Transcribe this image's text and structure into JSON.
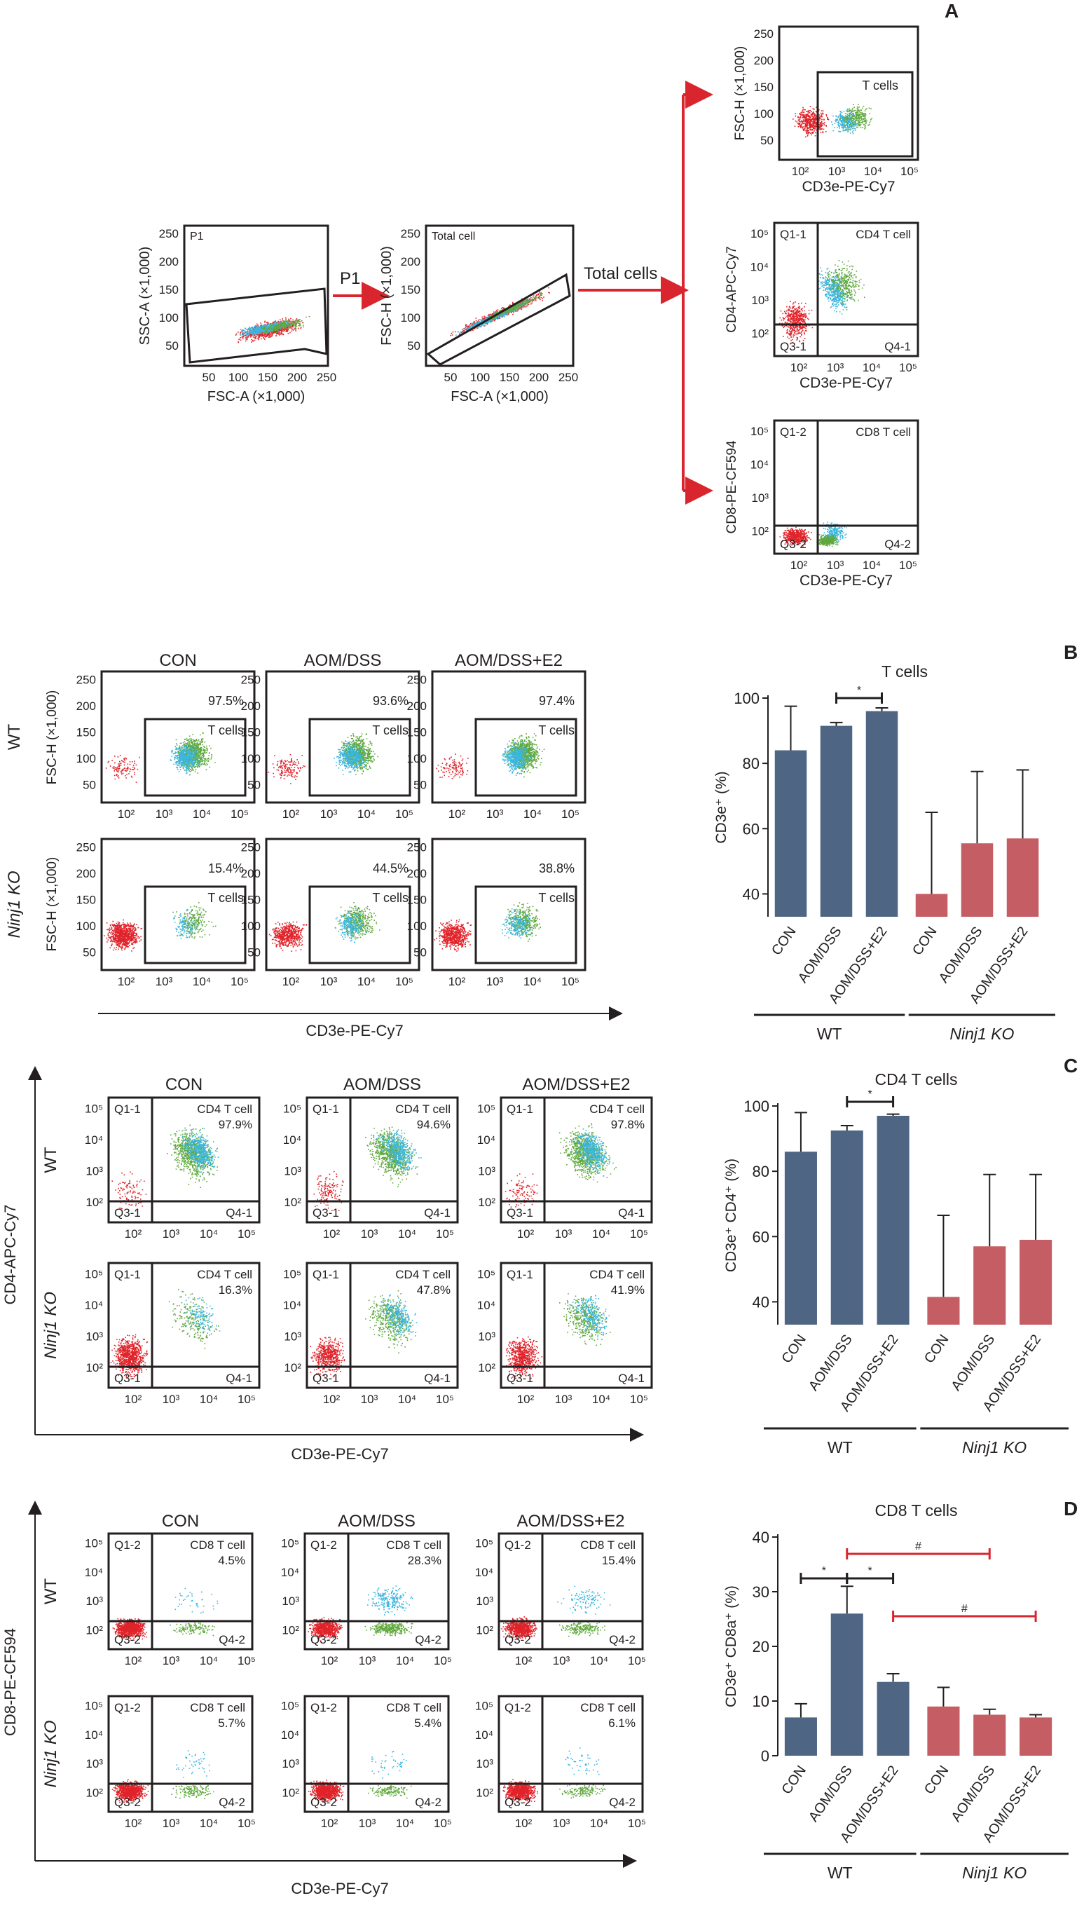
{
  "panels": {
    "A": {
      "letter": "A",
      "arrow_labels": {
        "p1": "P1",
        "total": "Total cells"
      },
      "plots": {
        "p1": {
          "gate_label": "P1",
          "xlabel": "FSC-A (×1,000)",
          "ylabel": "SSC-A (×1,000)",
          "xticks": [
            "50",
            "100",
            "150",
            "200",
            "250"
          ],
          "yticks": [
            "250",
            "200",
            "150",
            "100",
            "50"
          ]
        },
        "total": {
          "gate_label": "Total cell",
          "xlabel": "FSC-A (×1,000)",
          "ylabel": "FSC-H (×1,000)",
          "xticks": [
            "50",
            "100",
            "150",
            "200",
            "250"
          ],
          "yticks": [
            "250",
            "200",
            "150",
            "100",
            "50"
          ]
        },
        "tcells": {
          "gate_label": "T cells",
          "xlabel": "CD3e-PE-Cy7",
          "ylabel": "FSC-H (×1,000)",
          "xticks": [
            "10²",
            "10³",
            "10⁴",
            "10⁵"
          ],
          "yticks": [
            "250",
            "200",
            "150",
            "100",
            "50"
          ]
        },
        "cd4": {
          "gate_label": "CD4 T cell",
          "q_tl": "Q1-1",
          "q_bl": "Q3-1",
          "q_br": "Q4-1",
          "xlabel": "CD3e-PE-Cy7",
          "ylabel": "CD4-APC-Cy7",
          "xticks": [
            "10²",
            "10³",
            "10⁴",
            "10⁵"
          ],
          "yticks": [
            "10⁵",
            "10⁴",
            "10³",
            "10²"
          ]
        },
        "cd8": {
          "gate_label": "CD8 T cell",
          "q_tl": "Q1-2",
          "q_bl": "Q3-2",
          "q_br": "Q4-2",
          "xlabel": "CD3e-PE-Cy7",
          "ylabel": "CD8-PE-CF594",
          "xticks": [
            "10²",
            "10³",
            "10⁴",
            "10⁵"
          ],
          "yticks": [
            "10⁵",
            "10⁴",
            "10³",
            "10²"
          ]
        }
      }
    },
    "B": {
      "letter": "B",
      "col_titles": [
        "CON",
        "AOM/DSS",
        "AOM/DSS+E2"
      ],
      "row_labels": [
        "WT",
        "Ninj1 KO"
      ],
      "gate_label": "T cells",
      "ylabel": "FSC-H (×1,000)",
      "yticks": [
        "250",
        "200",
        "150",
        "100",
        "50"
      ],
      "xticks": [
        "10²",
        "10³",
        "10⁴",
        "10⁵"
      ],
      "xlabel": "CD3e-PE-Cy7",
      "percents": [
        [
          "97.5%",
          "93.6%",
          "97.4%"
        ],
        [
          "15.4%",
          "44.5%",
          "38.8%"
        ]
      ]
    },
    "C": {
      "letter": "C",
      "col_titles": [
        "CON",
        "AOM/DSS",
        "AOM/DSS+E2"
      ],
      "row_labels": [
        "WT",
        "Ninj1 KO"
      ],
      "gate_label": "CD4 T cell",
      "q_tl": "Q1-1",
      "q_bl": "Q3-1",
      "q_br": "Q4-1",
      "yticks": [
        "10⁵",
        "10⁴",
        "10³",
        "10²"
      ],
      "xticks": [
        "10²",
        "10³",
        "10⁴",
        "10⁵"
      ],
      "xlabel": "CD3e-PE-Cy7",
      "ylabel": "CD4-APC-Cy7",
      "percents": [
        [
          "97.9%",
          "94.6%",
          "97.8%"
        ],
        [
          "16.3%",
          "47.8%",
          "41.9%"
        ]
      ]
    },
    "D": {
      "letter": "D",
      "col_titles": [
        "CON",
        "AOM/DSS",
        "AOM/DSS+E2"
      ],
      "row_labels": [
        "WT",
        "Ninj1 KO"
      ],
      "gate_label": "CD8 T cell",
      "q_tl": "Q1-2",
      "q_bl": "Q3-2",
      "q_br": "Q4-2",
      "yticks": [
        "10⁵",
        "10⁴",
        "10³",
        "10²"
      ],
      "xticks": [
        "10²",
        "10³",
        "10⁴",
        "10⁵"
      ],
      "xlabel": "CD3e-PE-Cy7",
      "ylabel": "CD8-PE-CF594",
      "percents": [
        [
          "4.5%",
          "28.3%",
          "15.4%"
        ],
        [
          "5.7%",
          "5.4%",
          "6.1%"
        ]
      ]
    }
  },
  "colors": {
    "wt_bar": "#4f6584",
    "ko_bar": "#c45d64",
    "gate_arrow": "#d9262e",
    "dots": [
      "#e0232a",
      "#3bb6df",
      "#5fa83c"
    ],
    "sig_red": "#d9262e"
  },
  "chart_data": [
    {
      "type": "bar",
      "panel": "B",
      "title": "T cells",
      "ylabel": "CD3e⁺ (%)",
      "categories": [
        "CON",
        "AOM/DSS",
        "AOM/DSS+E2",
        "CON",
        "AOM/DSS",
        "AOM/DSS+E2"
      ],
      "groups": [
        "WT",
        "Ninj1 KO"
      ],
      "values": [
        84,
        91.5,
        96,
        40,
        55.5,
        57
      ],
      "errors": [
        13.5,
        1,
        1,
        25,
        22,
        21
      ],
      "ylim": [
        33,
        100
      ],
      "yticks": [
        "40",
        "60",
        "80",
        "100"
      ],
      "significance": [
        {
          "from": 1,
          "to": 2,
          "label": "*"
        }
      ]
    },
    {
      "type": "bar",
      "panel": "C",
      "title": "CD4 T cells",
      "ylabel": "CD3e⁺ CD4⁺ (%)",
      "categories": [
        "CON",
        "AOM/DSS",
        "AOM/DSS+E2",
        "CON",
        "AOM/DSS",
        "AOM/DSS+E2"
      ],
      "groups": [
        "WT",
        "Ninj1 KO"
      ],
      "values": [
        86,
        92.5,
        97,
        41.5,
        57,
        59
      ],
      "errors": [
        12,
        1.5,
        0.5,
        25,
        22,
        20
      ],
      "ylim": [
        33,
        100
      ],
      "yticks": [
        "40",
        "60",
        "80",
        "100"
      ],
      "significance": [
        {
          "from": 1,
          "to": 2,
          "label": "*"
        }
      ]
    },
    {
      "type": "bar",
      "panel": "D",
      "title": "CD8 T cells",
      "ylabel": "CD3e⁺ CD8a⁺ (%)",
      "categories": [
        "CON",
        "AOM/DSS",
        "AOM/DSS+E2",
        "CON",
        "AOM/DSS",
        "AOM/DSS+E2"
      ],
      "groups": [
        "WT",
        "Ninj1 KO"
      ],
      "values": [
        7,
        26,
        13.5,
        9,
        7.5,
        7
      ],
      "errors": [
        2.5,
        5,
        1.5,
        3.5,
        1,
        0.5
      ],
      "ylim": [
        0,
        40
      ],
      "yticks": [
        "0",
        "10",
        "20",
        "30",
        "40"
      ],
      "significance": [
        {
          "from": 0,
          "to": 1,
          "label": "*",
          "color": "black"
        },
        {
          "from": 1,
          "to": 2,
          "label": "*",
          "color": "black"
        },
        {
          "from": 1,
          "to": 4,
          "label": "#",
          "color": "red"
        },
        {
          "from": 2,
          "to": 5,
          "label": "#",
          "color": "red"
        }
      ]
    }
  ]
}
